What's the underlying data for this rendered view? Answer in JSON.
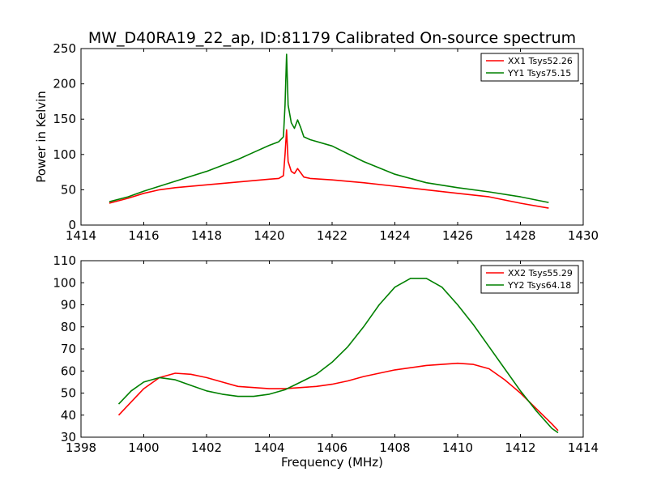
{
  "figure_title": "MW_D40RA19_22_ap, ID:81179 Calibrated On-source spectrum",
  "colors": {
    "red": "#ff0000",
    "green": "#008000",
    "axis": "#000000"
  },
  "chart_data": [
    {
      "type": "line",
      "title": "MW_D40RA19_22_ap, ID:81179 Calibrated On-source spectrum",
      "xlabel": "",
      "ylabel": "Power in Kelvin",
      "xlim": [
        1414,
        1430
      ],
      "ylim": [
        0,
        250
      ],
      "xticks": [
        1414,
        1416,
        1418,
        1420,
        1422,
        1424,
        1426,
        1428,
        1430
      ],
      "yticks": [
        0,
        50,
        100,
        150,
        200,
        250
      ],
      "grid": false,
      "legend_position": "top-right",
      "series": [
        {
          "name": "XX1 Tsys52.26",
          "color": "#ff0000",
          "x": [
            1414.9,
            1415.5,
            1416,
            1416.5,
            1417,
            1418,
            1419,
            1420,
            1420.3,
            1420.45,
            1420.5,
            1420.55,
            1420.6,
            1420.7,
            1420.8,
            1420.9,
            1421.0,
            1421.1,
            1421.3,
            1422,
            1423,
            1424,
            1425,
            1426,
            1427,
            1428,
            1428.9
          ],
          "y": [
            31,
            38,
            45,
            50,
            53,
            57,
            61,
            65,
            66,
            70,
            100,
            135,
            90,
            76,
            73,
            80,
            74,
            68,
            66,
            64,
            60,
            55,
            50,
            45,
            40,
            31,
            24
          ]
        },
        {
          "name": "YY1 Tsys75.15",
          "color": "#008000",
          "x": [
            1414.9,
            1415.5,
            1416,
            1416.5,
            1417,
            1418,
            1419,
            1419.5,
            1420,
            1420.3,
            1420.45,
            1420.5,
            1420.55,
            1420.6,
            1420.7,
            1420.8,
            1420.9,
            1421.0,
            1421.1,
            1421.3,
            1422,
            1423,
            1424,
            1425,
            1426,
            1427,
            1428,
            1428.9
          ],
          "y": [
            33,
            40,
            48,
            55,
            62,
            76,
            93,
            103,
            113,
            118,
            125,
            170,
            242,
            170,
            145,
            137,
            149,
            138,
            125,
            121,
            112,
            90,
            72,
            60,
            53,
            47,
            40,
            32
          ]
        }
      ]
    },
    {
      "type": "line",
      "title": "",
      "xlabel": "Frequency (MHz)",
      "ylabel": "",
      "xlim": [
        1398,
        1414
      ],
      "ylim": [
        30,
        110
      ],
      "xticks": [
        1398,
        1400,
        1402,
        1404,
        1406,
        1408,
        1410,
        1412,
        1414
      ],
      "yticks": [
        30,
        40,
        50,
        60,
        70,
        80,
        90,
        100,
        110
      ],
      "grid": false,
      "legend_position": "top-right",
      "series": [
        {
          "name": "XX2 Tsys55.29",
          "color": "#ff0000",
          "x": [
            1399.2,
            1399.6,
            1400,
            1400.5,
            1401,
            1401.5,
            1402,
            1402.5,
            1403,
            1403.5,
            1404,
            1404.5,
            1405,
            1405.5,
            1406,
            1406.5,
            1407,
            1407.5,
            1408,
            1408.5,
            1409,
            1409.5,
            1410,
            1410.5,
            1411,
            1411.5,
            1412,
            1412.5,
            1413,
            1413.2
          ],
          "y": [
            40,
            46,
            52,
            57,
            59,
            58.5,
            57,
            55,
            53,
            52.5,
            52,
            52,
            52.5,
            53,
            54,
            55.5,
            57.5,
            59,
            60.5,
            61.5,
            62.5,
            63,
            63.5,
            63,
            61,
            56,
            50,
            43,
            36,
            33
          ]
        },
        {
          "name": "YY2 Tsys64.18",
          "color": "#008000",
          "x": [
            1399.2,
            1399.6,
            1400,
            1400.5,
            1401,
            1401.5,
            1402,
            1402.5,
            1403,
            1403.5,
            1404,
            1404.5,
            1405,
            1405.5,
            1406,
            1406.5,
            1407,
            1407.5,
            1408,
            1408.5,
            1409,
            1409.5,
            1410,
            1410.5,
            1411,
            1411.5,
            1412,
            1412.5,
            1413,
            1413.2
          ],
          "y": [
            45,
            51,
            55,
            57,
            56,
            53.5,
            51,
            49.5,
            48.5,
            48.5,
            49.5,
            51.5,
            55,
            58.5,
            64,
            71,
            80,
            90,
            98,
            102,
            102,
            98,
            90,
            81,
            71,
            61,
            51,
            42,
            34,
            32
          ]
        }
      ]
    }
  ]
}
